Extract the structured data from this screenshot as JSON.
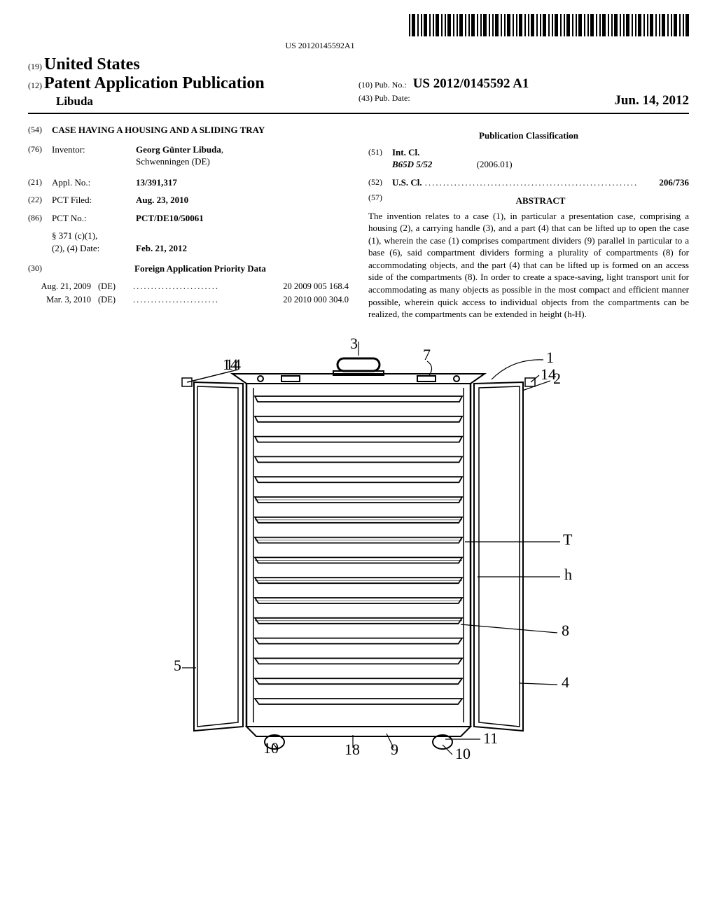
{
  "barcode": {
    "number": "US 20120145592A1"
  },
  "header": {
    "country_code": "(19)",
    "country": "United States",
    "pub_code": "(12)",
    "pub_type": "Patent Application Publication",
    "author": "Libuda",
    "pubno_code": "(10)",
    "pubno_label": "Pub. No.:",
    "pubno": "US 2012/0145592 A1",
    "pubdate_code": "(43)",
    "pubdate_label": "Pub. Date:",
    "pubdate": "Jun. 14, 2012"
  },
  "left": {
    "title_code": "(54)",
    "title": "CASE HAVING A HOUSING AND A SLIDING TRAY",
    "inventor_code": "(76)",
    "inventor_label": "Inventor:",
    "inventor_name": "Georg Günter Libuda",
    "inventor_loc": "Schwenningen (DE)",
    "applno_code": "(21)",
    "applno_label": "Appl. No.:",
    "applno": "13/391,317",
    "pctfiled_code": "(22)",
    "pctfiled_label": "PCT Filed:",
    "pctfiled": "Aug. 23, 2010",
    "pctno_code": "(86)",
    "pctno_label": "PCT No.:",
    "pctno": "PCT/DE10/50061",
    "s371_label": "§ 371 (c)(1),\n(2), (4) Date:",
    "s371_date": "Feb. 21, 2012",
    "foreign_code": "(30)",
    "foreign_hdr": "Foreign Application Priority Data",
    "priorities": [
      {
        "date": "Aug. 21, 2009",
        "ctry": "(DE)",
        "num": "20 2009 005 168.4"
      },
      {
        "date": "Mar. 3, 2010",
        "ctry": "(DE)",
        "num": "20 2010 000 304.0"
      }
    ]
  },
  "right": {
    "class_hdr": "Publication Classification",
    "intcl_code": "(51)",
    "intcl_label": "Int. Cl.",
    "intcl_sym": "B65D 5/52",
    "intcl_ver": "(2006.01)",
    "uscl_code": "(52)",
    "uscl_label": "U.S. Cl.",
    "uscl_val": "206/736",
    "abstract_code": "(57)",
    "abstract_hdr": "ABSTRACT",
    "abstract": "The invention relates to a case (1), in particular a presentation case, comprising a housing (2), a carrying handle (3), and a part (4) that can be lifted up to open the case (1), wherein the case (1) comprises compartment dividers (9) parallel in particular to a base (6), said compartment dividers forming a plurality of compartments (8) for accommodating objects, and the part (4) that can be lifted up is formed on an access side of the compartments (8). In order to create a space-saving, light transport unit for accommodating as many objects as possible in the most compact and efficient manner possible, wherein quick access to individual objects from the compartments can be realized, the compartments can be extended in height (h-H)."
  },
  "figure": {
    "labels": [
      "1",
      "2",
      "3",
      "4",
      "5",
      "7",
      "8",
      "9",
      "10",
      "10",
      "11",
      "14",
      "14",
      "18",
      "T",
      "h"
    ],
    "main_stroke": "#000000",
    "background": "#ffffff",
    "num_trays": 16
  }
}
